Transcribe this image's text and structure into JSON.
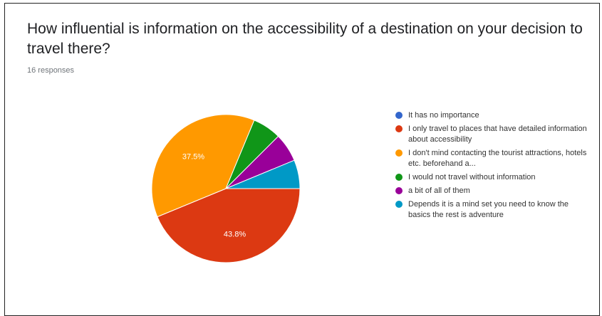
{
  "header": {
    "title": "How influential is information on the accessibility of a destination on your decision to travel there?",
    "responses": "16 responses"
  },
  "chart_data": {
    "type": "pie",
    "categories": [
      "It has no importance",
      "I only travel to places that have detailed information about accessibility",
      "I don't mind contacting the tourist attractions, hotels etc. beforehand a...",
      "I would not travel without information",
      "a bit of all of them",
      "Depends it is a mind set you need to know the basics the rest is adventure"
    ],
    "values": [
      0,
      43.8,
      37.5,
      6.25,
      6.25,
      6.25
    ],
    "labels": [
      "",
      "43.8%",
      "37.5%",
      "",
      "",
      ""
    ],
    "colors": [
      "#3366cc",
      "#dc3912",
      "#ff9900",
      "#109618",
      "#990099",
      "#0099c6"
    ],
    "legend_position": "right"
  }
}
